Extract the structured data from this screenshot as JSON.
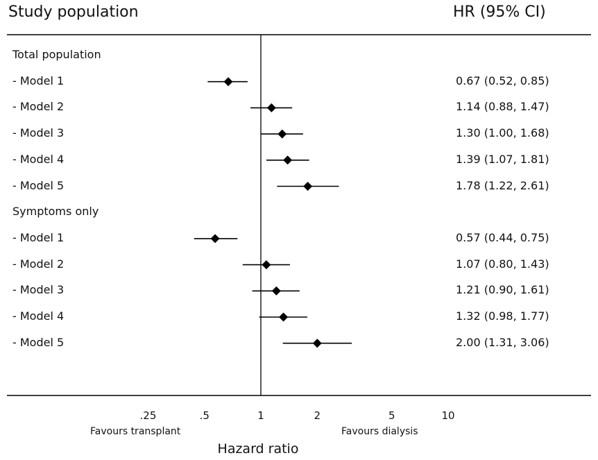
{
  "header": {
    "left": "Study population",
    "right": "HR (95% CI)"
  },
  "chart_data": {
    "type": "forest",
    "xscale": "log",
    "xlim": [
      0.125,
      20
    ],
    "reference_line": 1,
    "xticks": [
      0.25,
      0.5,
      1,
      2,
      5,
      10
    ],
    "xtick_labels": [
      ".25",
      ".5",
      "1",
      "2",
      "5",
      "10"
    ],
    "xlabel": "Hazard ratio",
    "annotations": {
      "left": "Favours transplant",
      "right": "Favours dialysis"
    },
    "rows": [
      {
        "label": "Total population",
        "group": true
      },
      {
        "label": "- Model 1",
        "hr": 0.67,
        "lo": 0.52,
        "hi": 0.85,
        "text": "0.67 (0.52, 0.85)"
      },
      {
        "label": "- Model 2",
        "hr": 1.14,
        "lo": 0.88,
        "hi": 1.47,
        "text": "1.14 (0.88, 1.47)"
      },
      {
        "label": "- Model 3",
        "hr": 1.3,
        "lo": 1.0,
        "hi": 1.68,
        "text": "1.30 (1.00, 1.68)"
      },
      {
        "label": "- Model 4",
        "hr": 1.39,
        "lo": 1.07,
        "hi": 1.81,
        "text": "1.39 (1.07, 1.81)"
      },
      {
        "label": "- Model 5",
        "hr": 1.78,
        "lo": 1.22,
        "hi": 2.61,
        "text": "1.78 (1.22, 2.61)"
      },
      {
        "label": "Symptoms only",
        "group": true
      },
      {
        "label": "- Model 1",
        "hr": 0.57,
        "lo": 0.44,
        "hi": 0.75,
        "text": "0.57 (0.44, 0.75)"
      },
      {
        "label": "- Model 2",
        "hr": 1.07,
        "lo": 0.8,
        "hi": 1.43,
        "text": "1.07 (0.80, 1.43)"
      },
      {
        "label": "- Model 3",
        "hr": 1.21,
        "lo": 0.9,
        "hi": 1.61,
        "text": "1.21 (0.90, 1.61)"
      },
      {
        "label": "- Model 4",
        "hr": 1.32,
        "lo": 0.98,
        "hi": 1.77,
        "text": "1.32 (0.98, 1.77)"
      },
      {
        "label": "- Model 5",
        "hr": 2.0,
        "lo": 1.31,
        "hi": 3.06,
        "text": "2.00 (1.31, 3.06)"
      }
    ]
  }
}
